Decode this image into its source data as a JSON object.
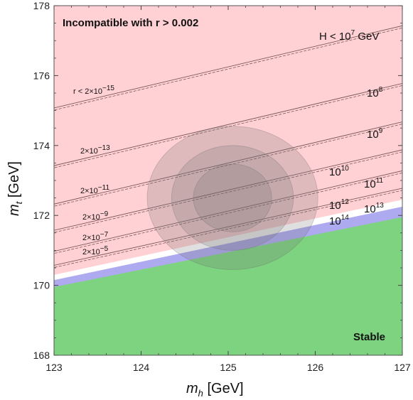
{
  "chart_data": {
    "type": "area",
    "title": "",
    "xlabel": "m",
    "xlabel_sub": "h",
    "xlabel_unit": " [GeV]",
    "ylabel": "m",
    "ylabel_sub": "t",
    "ylabel_unit": " [GeV]",
    "xlim": [
      123,
      127
    ],
    "ylim": [
      168,
      178
    ],
    "xticks": [
      "123",
      "124",
      "125",
      "126",
      "127"
    ],
    "yticks": [
      "168",
      "170",
      "172",
      "174",
      "176",
      "178"
    ],
    "grid": false,
    "regions": [
      {
        "name": "Incompatible with r > 0.002",
        "color": "#ffd0d4",
        "description": "upper region"
      },
      {
        "name": "",
        "color": "#ffffff",
        "y_at_xmin": 170.3,
        "y_at_xmax": 172.45
      },
      {
        "name": "",
        "color": "#aeaaf0",
        "y_at_xmin": 170.15,
        "y_at_xmax": 172.25
      },
      {
        "name": "Stable",
        "color": "#7dd37f",
        "y_at_xmin": 169.95,
        "y_at_xmax": 171.95
      }
    ],
    "lines": [
      {
        "value": "2×10^-15",
        "y_at_xmin": 175.05,
        "y_at_xmax": 177.45
      },
      {
        "value": "2×10^-13",
        "y_at_xmin": 173.4,
        "y_at_xmax": 175.8
      },
      {
        "value": "2×10^-11",
        "y_at_xmin": 172.3,
        "y_at_xmax": 174.7
      },
      {
        "value": "2×10^-9",
        "y_at_xmin": 171.55,
        "y_at_xmax": 173.9
      },
      {
        "value": "2×10^-7",
        "y_at_xmin": 170.95,
        "y_at_xmax": 173.3
      },
      {
        "value": "2×10^-5",
        "y_at_xmin": 170.55,
        "y_at_xmax": 172.8
      }
    ],
    "ellipses": [
      {
        "cx": 125.05,
        "cy": 172.5,
        "rx": 0.98,
        "ry": 2.05,
        "color": "#6e6e6e",
        "opacity": 0.22
      },
      {
        "cx": 125.05,
        "cy": 172.5,
        "rx": 0.7,
        "ry": 1.5,
        "color": "#6e6e6e",
        "opacity": 0.22
      },
      {
        "cx": 125.05,
        "cy": 172.5,
        "rx": 0.45,
        "ry": 0.97,
        "color": "#6e6e6e",
        "opacity": 0.22
      }
    ]
  },
  "annotations": {
    "incompatible": "Incompatible with r > 0.002",
    "stable": "Stable",
    "r_prefix": "r < 2×10",
    "r_first_exp": "−15",
    "r_coef": "2×10",
    "r_exps": [
      "−13",
      "−11",
      "−9",
      "−7",
      "−5"
    ],
    "h_prefix": "H < 10",
    "h_first_exp": "7",
    "h_unit": " GeV",
    "h_base": "10",
    "h_exps": [
      "8",
      "9",
      "10",
      "11",
      "12",
      "13",
      "14"
    ]
  }
}
